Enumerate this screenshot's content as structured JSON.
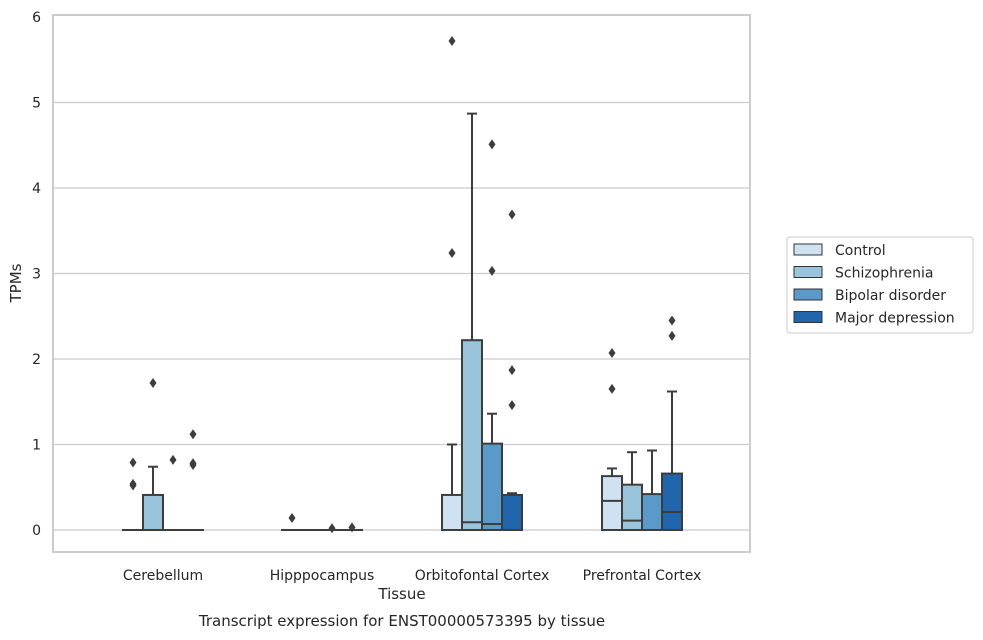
{
  "chart_data": {
    "type": "box",
    "xlabel": "Tissue",
    "ylabel": "TPMs",
    "caption": "Transcript expression for ENST00000573395 by tissue",
    "ylim": [
      -0.27,
      6.0
    ],
    "yticks": [
      "0",
      "1",
      "2",
      "3",
      "4",
      "5",
      "6"
    ],
    "grid": "horizontal",
    "legend_position": "right-center",
    "categories": [
      "Cerebellum",
      "Hipppocampus",
      "Orbitofontal Cortex",
      "Prefrontal Cortex"
    ],
    "series": [
      {
        "name": "Control",
        "color": "#d0e2f2",
        "boxes": [
          {
            "q1": 0,
            "median": 0,
            "q3": 0,
            "whisker_low": 0,
            "whisker_high": 0,
            "outliers": [
              0.54,
              0.52,
              0.79
            ]
          },
          {
            "q1": 0,
            "median": 0,
            "q3": 0,
            "whisker_low": 0,
            "whisker_high": 0,
            "outliers": [
              0.14
            ]
          },
          {
            "q1": 0,
            "median": 0,
            "q3": 0.41,
            "whisker_low": 0,
            "whisker_high": 1.0,
            "outliers": [
              3.24,
              5.72
            ]
          },
          {
            "q1": 0,
            "median": 0.34,
            "q3": 0.63,
            "whisker_low": 0,
            "whisker_high": 0.72,
            "outliers": [
              1.65,
              2.07
            ]
          }
        ]
      },
      {
        "name": "Schizophrenia",
        "color": "#9ac3dc",
        "boxes": [
          {
            "q1": 0,
            "median": 0,
            "q3": 0.41,
            "whisker_low": 0,
            "whisker_high": 0.74,
            "outliers": [
              1.72
            ]
          },
          {
            "q1": 0,
            "median": 0,
            "q3": 0,
            "whisker_low": 0,
            "whisker_high": 0,
            "outliers": []
          },
          {
            "q1": 0,
            "median": 0.09,
            "q3": 2.22,
            "whisker_low": 0,
            "whisker_high": 4.87,
            "outliers": []
          },
          {
            "q1": 0,
            "median": 0.11,
            "q3": 0.53,
            "whisker_low": 0,
            "whisker_high": 0.91,
            "outliers": []
          }
        ]
      },
      {
        "name": "Bipolar disorder",
        "color": "#5a9ac8",
        "boxes": [
          {
            "q1": 0,
            "median": 0,
            "q3": 0,
            "whisker_low": 0,
            "whisker_high": 0,
            "outliers": [
              0.82
            ]
          },
          {
            "q1": 0,
            "median": 0,
            "q3": 0,
            "whisker_low": 0,
            "whisker_high": 0,
            "outliers": [
              0.02
            ]
          },
          {
            "q1": 0,
            "median": 0.07,
            "q3": 1.01,
            "whisker_low": 0,
            "whisker_high": 1.36,
            "outliers": [
              3.03,
              4.51
            ]
          },
          {
            "q1": 0,
            "median": 0,
            "q3": 0.42,
            "whisker_low": 0,
            "whisker_high": 0.93,
            "outliers": []
          }
        ]
      },
      {
        "name": "Major depression",
        "color": "#2166ac",
        "boxes": [
          {
            "q1": 0,
            "median": 0,
            "q3": 0,
            "whisker_low": 0,
            "whisker_high": 0,
            "outliers": [
              0.76,
              0.78,
              1.12
            ]
          },
          {
            "q1": 0,
            "median": 0,
            "q3": 0,
            "whisker_low": 0,
            "whisker_high": 0,
            "outliers": [
              0.03
            ]
          },
          {
            "q1": 0,
            "median": 0,
            "q3": 0.41,
            "whisker_low": 0,
            "whisker_high": 0.43,
            "outliers": [
              1.46,
              1.87,
              3.69
            ]
          },
          {
            "q1": 0,
            "median": 0.21,
            "q3": 0.66,
            "whisker_low": 0,
            "whisker_high": 1.62,
            "outliers": [
              2.27,
              2.45
            ]
          }
        ]
      }
    ]
  }
}
